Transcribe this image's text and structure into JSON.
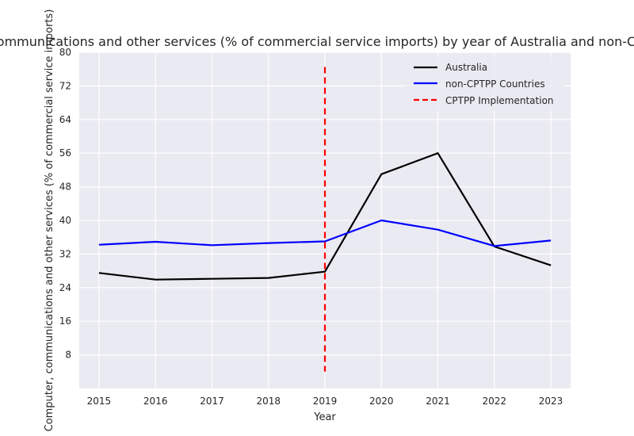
{
  "chart_data": {
    "type": "line",
    "title": "Computer, communications and other services (% of commercial service imports) by year of Australia and non-CPTPP Countries",
    "xlabel": "Year",
    "ylabel": "Computer, communications and other services (% of commercial service imports)",
    "categories": [
      "2015",
      "2016",
      "2017",
      "2018",
      "2019",
      "2020",
      "2021",
      "2022",
      "2023"
    ],
    "x": [
      2015,
      2016,
      2017,
      2018,
      2019,
      2020,
      2021,
      2022,
      2023
    ],
    "xlim": [
      2014.65,
      2023.35
    ],
    "ylim": [
      0,
      80
    ],
    "yticks": [
      8,
      16,
      24,
      32,
      40,
      48,
      56,
      64,
      72,
      80
    ],
    "grid": true,
    "legend_position": "top-right",
    "series": [
      {
        "name": "Australia",
        "color": "#000000",
        "values": [
          27.5,
          25.9,
          26.1,
          26.3,
          27.8,
          51.0,
          56.0,
          33.8,
          29.3
        ]
      },
      {
        "name": "non-CPTPP Countries",
        "color": "#0000ff",
        "values": [
          34.2,
          34.9,
          34.1,
          34.6,
          35.0,
          40.0,
          37.8,
          33.9,
          35.2
        ]
      }
    ],
    "vline": {
      "name": "CPTPP Implementation",
      "x": 2019,
      "y_range": [
        4,
        76.5
      ],
      "color": "#ff0000",
      "style": "dashed"
    }
  }
}
